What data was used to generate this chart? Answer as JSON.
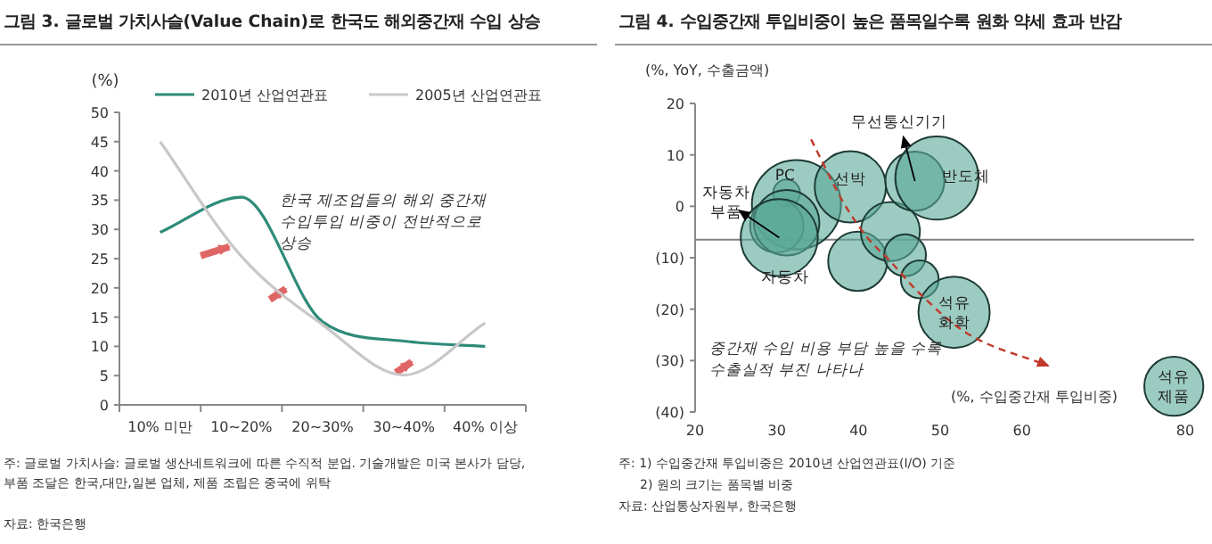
{
  "chart_data": [
    {
      "type": "line",
      "title": "그림 3. 글로벌 가치사슬(Value Chain)로 한국도 해외중간재 수입 상승",
      "ylabel": "(%)",
      "categories": [
        "10% 미만",
        "10~20%",
        "20~30%",
        "30~40%",
        "40% 이상"
      ],
      "series": [
        {
          "name": "2010년 산업연관표",
          "color": "#2e8b7a",
          "values": [
            29.5,
            35.5,
            14.2,
            10.9,
            10
          ]
        },
        {
          "name": "2005년 산업연관표",
          "color": "#c8c8c8",
          "values": [
            45,
            25.4,
            13.7,
            5.1,
            14
          ]
        }
      ],
      "ylim": [
        0,
        50
      ],
      "yticks": [
        0,
        5,
        10,
        15,
        20,
        25,
        30,
        35,
        40,
        45,
        50
      ],
      "legend": "top",
      "grid": false,
      "annotations": [
        "한국 제조업들의 해외 중간재 수입투입 비중이 전반적으로 상승",
        "주: 글로벌 가치사슬: 글로벌 생산네트워크에 따른 수직적 분업. 기술개발은 미국 본사가 담당, 부품 조달은 한국,대만,일본 업체, 제품 조립은 중국에 위탁",
        "자료: 한국은행"
      ]
    },
    {
      "type": "bubble",
      "title": "그림 4. 수입중간재 투입비중이 높은 품목일수록 원화 약세 효과 반감",
      "ylabel": "(%, YoY, 수출금액)",
      "xlabel": "(%, 수입중간재 투입비중)",
      "series": [
        {
          "color": "#5aa897",
          "x": [
            31.2,
            32.4,
            30.0,
            31.2,
            30.3,
            39.0,
            39.9,
            43.9,
            45.7,
            47.5,
            46.9,
            49.6,
            51.7,
            78.6
          ],
          "values": [
            2.6,
            0.3,
            -3.8,
            -3.2,
            -6.1,
            3.8,
            -10.7,
            -4.9,
            -9.5,
            -14.2,
            4.9,
            5.5,
            -20.6,
            -35.0
          ],
          "sizes": [
            0.09,
            1,
            0.36,
            0.54,
            0.75,
            0.64,
            0.44,
            0.44,
            0.22,
            0.18,
            0.44,
            0.87,
            0.64,
            0.44
          ]
        },
        {
          "type": "line",
          "color": "#c0392b",
          "line_style": "dashed",
          "x": [
            34.2,
            38.1,
            41.1,
            43.9,
            47.2,
            53.2,
            63.2
          ],
          "values": [
            13.0,
            0.9,
            -6.1,
            -10.7,
            -16.5,
            -24.6,
            -31.0
          ]
        }
      ],
      "xlim": [
        20,
        80
      ],
      "xticks": [
        20,
        30,
        40,
        50,
        60,
        80
      ],
      "ylim": [
        -40,
        20
      ],
      "yticks": [
        {
          "value": -40,
          "label": "(40)"
        },
        {
          "value": -30,
          "label": "(30)"
        },
        {
          "value": -20,
          "label": "(20)"
        },
        {
          "value": -10,
          "label": "(10)"
        },
        0,
        10,
        20
      ],
      "ref_lines": [
        {
          "axis": "y",
          "value": -6.5,
          "color": "#808080"
        }
      ],
      "grid": false,
      "annotations": [
        {
          "text": "무선통신기기",
          "x": 46.9,
          "y": 4.9
        },
        {
          "text": "자동차 부품",
          "x": 30.3,
          "y": -6.1
        },
        "PC",
        "선박",
        "반도체",
        "자동차",
        "석유 화학",
        "석유 제품",
        "중간재 수입 비용 부담 높을 수록 수출실적 부진 나타나",
        "주: 1) 수입중간재 투입비중은 2010년 산업연관표(I/O) 기준",
        "2) 원의 크기는 품목별 비중",
        "자료: 산업통상자원부, 한국은행"
      ]
    }
  ]
}
